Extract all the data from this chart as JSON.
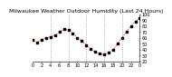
{
  "title": "Milwaukee Weather Outdoor Humidity (Last 24 Hours)",
  "x_values": [
    0,
    1,
    2,
    3,
    4,
    5,
    6,
    7,
    8,
    9,
    10,
    11,
    12,
    13,
    14,
    15,
    16,
    17,
    18,
    19,
    20,
    21,
    22,
    23,
    24
  ],
  "y_values": [
    56,
    52,
    57,
    60,
    62,
    64,
    70,
    75,
    73,
    68,
    60,
    55,
    48,
    42,
    36,
    33,
    32,
    35,
    40,
    50,
    60,
    70,
    80,
    88,
    93
  ],
  "ylim": [
    20,
    100
  ],
  "yticks": [
    20,
    30,
    40,
    50,
    60,
    70,
    80,
    90,
    100
  ],
  "xlim": [
    0,
    24
  ],
  "xtick_positions": [
    0,
    2,
    4,
    6,
    8,
    10,
    12,
    14,
    16,
    18,
    20,
    22,
    24
  ],
  "xtick_labels": [
    "0",
    "2",
    "4",
    "6",
    "8",
    "10",
    "12",
    "14",
    "16",
    "18",
    "20",
    "22",
    "0"
  ],
  "line_color": "#ff0000",
  "marker_color": "#000000",
  "grid_color": "#888888",
  "background_color": "#ffffff",
  "title_fontsize": 4.5,
  "axis_fontsize": 3.5,
  "vgrid_positions": [
    4,
    8,
    12,
    16,
    20,
    24
  ]
}
